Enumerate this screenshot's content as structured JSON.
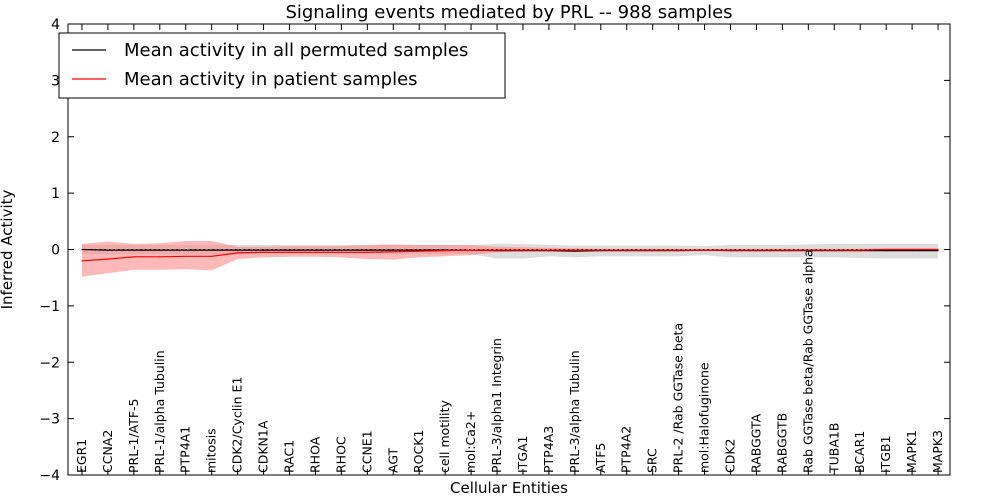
{
  "chart_data": {
    "type": "line",
    "title": "Signaling events mediated by PRL -- 988 samples",
    "xlabel": "Cellular Entities",
    "ylabel": "Inferred Activity",
    "ylim": [
      -4,
      4
    ],
    "yticks": [
      -4,
      -3,
      -2,
      -1,
      0,
      1,
      2,
      3,
      4
    ],
    "ytick_labels": [
      "−4",
      "−3",
      "−2",
      "−1",
      "0",
      "1",
      "2",
      "3",
      "4"
    ],
    "legend_position": "top-left",
    "categories": [
      "EGR1",
      "CCNA2",
      "PRL-1/ATF-5",
      "PRL-1/alpha Tubulin",
      "PTP4A1",
      "mitosis",
      "CDK2/Cyclin E1",
      "CDKN1A",
      "RAC1",
      "RHOA",
      "RHOC",
      "CCNE1",
      "AGT",
      "ROCK1",
      "cell motility",
      "mol:Ca2+",
      "PRL-3/alpha1 Integrin",
      "ITGA1",
      "PTP4A3",
      "PRL-3/alpha Tubulin",
      "ATF5",
      "PTP4A2",
      "SRC",
      "PRL-2 /Rab GGTase beta",
      "mol:Halofuginone",
      "CDK2",
      "RABGGTA",
      "RABGGTB",
      "Rab GGTase beta/Rab GGTase alpha",
      "TUBA1B",
      "BCAR1",
      "ITGB1",
      "MAPK1",
      "MAPK3"
    ],
    "series": [
      {
        "name": "Mean activity in all permuted samples",
        "color": "#000000",
        "band_color": "#bbbbbb",
        "values": [
          0.0,
          -0.01,
          -0.01,
          -0.01,
          -0.01,
          -0.01,
          -0.01,
          -0.01,
          -0.01,
          -0.01,
          -0.01,
          -0.01,
          -0.01,
          -0.01,
          -0.01,
          -0.01,
          -0.02,
          -0.02,
          -0.02,
          -0.03,
          -0.02,
          -0.02,
          -0.02,
          -0.02,
          -0.01,
          -0.02,
          -0.02,
          -0.02,
          -0.02,
          -0.02,
          -0.02,
          -0.02,
          -0.02,
          -0.02
        ],
        "lower": [
          -0.08,
          -0.08,
          -0.08,
          -0.08,
          -0.08,
          -0.08,
          -0.08,
          -0.08,
          -0.08,
          -0.08,
          -0.08,
          -0.08,
          -0.08,
          -0.08,
          -0.08,
          -0.08,
          -0.16,
          -0.16,
          -0.12,
          -0.14,
          -0.12,
          -0.12,
          -0.12,
          -0.12,
          -0.1,
          -0.14,
          -0.14,
          -0.14,
          -0.14,
          -0.14,
          -0.15,
          -0.16,
          -0.16,
          -0.16
        ],
        "upper": [
          0.08,
          0.08,
          0.08,
          0.08,
          0.08,
          0.08,
          0.08,
          0.08,
          0.08,
          0.08,
          0.08,
          0.08,
          0.08,
          0.08,
          0.08,
          0.08,
          0.1,
          0.1,
          0.08,
          0.07,
          0.07,
          0.07,
          0.07,
          0.07,
          0.06,
          0.08,
          0.08,
          0.08,
          0.09,
          0.1,
          0.1,
          0.1,
          0.1,
          0.1
        ]
      },
      {
        "name": "Mean activity in patient samples",
        "color": "#ff0000",
        "band_color": "#ff8080",
        "values": [
          -0.2,
          -0.17,
          -0.13,
          -0.13,
          -0.12,
          -0.12,
          -0.06,
          -0.05,
          -0.05,
          -0.05,
          -0.05,
          -0.05,
          -0.04,
          -0.03,
          -0.02,
          -0.01,
          -0.01,
          -0.01,
          -0.01,
          -0.01,
          -0.01,
          -0.01,
          -0.01,
          -0.01,
          -0.01,
          -0.01,
          -0.01,
          -0.01,
          -0.01,
          -0.01,
          -0.01,
          0.0,
          0.0,
          0.0
        ],
        "lower": [
          -0.48,
          -0.42,
          -0.36,
          -0.36,
          -0.35,
          -0.37,
          -0.17,
          -0.14,
          -0.13,
          -0.13,
          -0.14,
          -0.17,
          -0.18,
          -0.14,
          -0.12,
          -0.1,
          -0.05,
          -0.03,
          -0.02,
          -0.02,
          -0.02,
          -0.02,
          -0.02,
          -0.02,
          -0.02,
          -0.02,
          -0.02,
          -0.02,
          -0.02,
          -0.02,
          -0.02,
          -0.01,
          -0.01,
          -0.01
        ],
        "upper": [
          0.1,
          0.14,
          0.1,
          0.11,
          0.15,
          0.15,
          0.05,
          0.05,
          0.06,
          0.06,
          0.06,
          0.08,
          0.09,
          0.08,
          0.08,
          0.08,
          0.05,
          0.04,
          0.03,
          0.02,
          0.01,
          0.01,
          0.01,
          0.01,
          0.01,
          0.01,
          0.01,
          0.01,
          0.01,
          0.01,
          0.01,
          0.02,
          0.02,
          0.02
        ]
      }
    ]
  }
}
